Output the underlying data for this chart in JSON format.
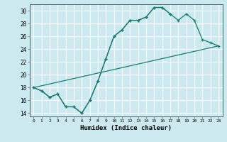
{
  "xlabel": "Humidex (Indice chaleur)",
  "bg_color": "#cce9f0",
  "grid_color": "#ffffff",
  "line_color": "#1a7a6e",
  "xlim": [
    -0.5,
    23.5
  ],
  "ylim": [
    13.5,
    31.0
  ],
  "xticks": [
    0,
    1,
    2,
    3,
    4,
    5,
    6,
    7,
    8,
    9,
    10,
    11,
    12,
    13,
    14,
    15,
    16,
    17,
    18,
    19,
    20,
    21,
    22,
    23
  ],
  "yticks": [
    14,
    16,
    18,
    20,
    22,
    24,
    26,
    28,
    30
  ],
  "line1_y": [
    18.0,
    17.5,
    16.5,
    17.0,
    15.0,
    15.0,
    14.0,
    16.0,
    19.0,
    22.5,
    26.0,
    27.0,
    28.5,
    28.5,
    29.0,
    30.5,
    30.5,
    29.5
  ],
  "line2_y": [
    18.0,
    17.5,
    16.5,
    17.0,
    15.0,
    15.0,
    14.0,
    16.0,
    19.0,
    22.5,
    26.0,
    27.0,
    28.5,
    28.5,
    29.0,
    30.5,
    30.5,
    29.5,
    28.5,
    29.5,
    28.5,
    25.5,
    25.0,
    24.5
  ],
  "line3_x": [
    0,
    23
  ],
  "line3_y": [
    18.0,
    24.5
  ],
  "marker": "+",
  "markersize": 3.5,
  "linewidth": 0.9
}
